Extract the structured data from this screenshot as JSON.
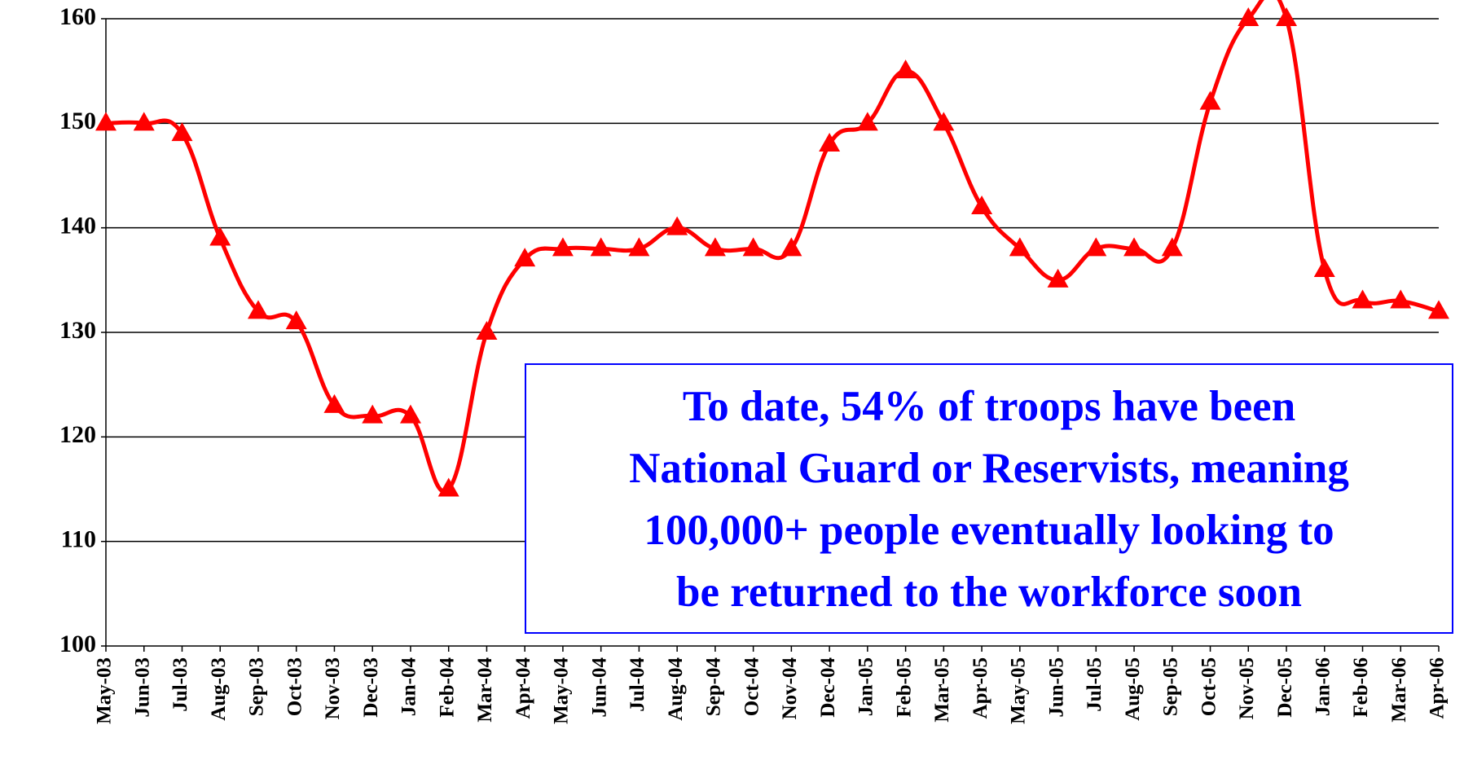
{
  "chart_data": {
    "type": "line",
    "categories": [
      "May-03",
      "Jun-03",
      "Jul-03",
      "Aug-03",
      "Sep-03",
      "Oct-03",
      "Nov-03",
      "Dec-03",
      "Jan-04",
      "Feb-04",
      "Mar-04",
      "Apr-04",
      "May-04",
      "Jun-04",
      "Jul-04",
      "Aug-04",
      "Sep-04",
      "Oct-04",
      "Nov-04",
      "Dec-04",
      "Jan-05",
      "Feb-05",
      "Mar-05",
      "Apr-05",
      "May-05",
      "Jun-05",
      "Jul-05",
      "Aug-05",
      "Sep-05",
      "Oct-05",
      "Nov-05",
      "Dec-05",
      "Jan-06",
      "Feb-06",
      "Mar-06",
      "Apr-06"
    ],
    "values": [
      150,
      150,
      149,
      139,
      132,
      131,
      123,
      122,
      122,
      115,
      130,
      137,
      138,
      138,
      138,
      140,
      138,
      138,
      138,
      148,
      150,
      155,
      150,
      142,
      138,
      135,
      138,
      138,
      138,
      152,
      160,
      160,
      136,
      133,
      133,
      132
    ],
    "color": "#ff0000",
    "ylim": [
      100,
      160
    ],
    "yticks": [
      100,
      110,
      120,
      130,
      140,
      150,
      160
    ],
    "grid": true,
    "annotation": [
      "To date, 54% of troops have been",
      "National Guard or Reservists, meaning",
      "100,000+ people eventually looking to",
      "be returned to the workforce soon"
    ],
    "annotation_color": "#0000ff"
  }
}
